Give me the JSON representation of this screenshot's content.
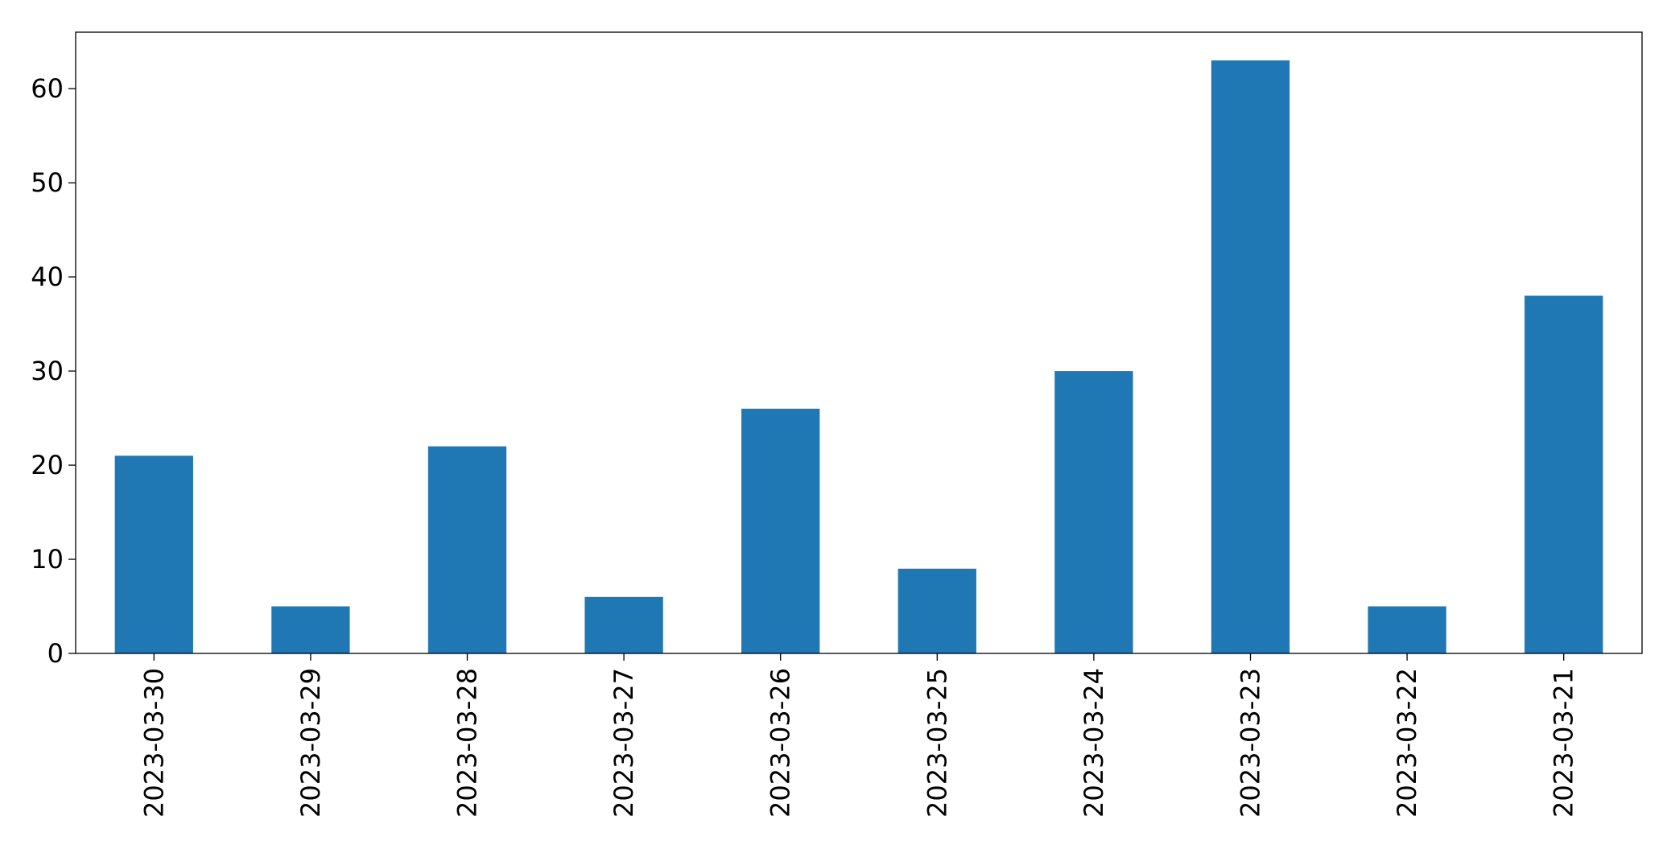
{
  "chart_data": {
    "type": "bar",
    "title": "",
    "xlabel": "",
    "ylabel": "",
    "categories": [
      "2023-03-30",
      "2023-03-29",
      "2023-03-28",
      "2023-03-27",
      "2023-03-26",
      "2023-03-25",
      "2023-03-24",
      "2023-03-23",
      "2023-03-22",
      "2023-03-21"
    ],
    "values": [
      21,
      5,
      22,
      6,
      26,
      9,
      30,
      63,
      5,
      38
    ],
    "ylim": [
      0,
      66
    ],
    "yticks": [
      0,
      10,
      20,
      30,
      40,
      50,
      60
    ],
    "ytick_labels": [
      "0",
      "10",
      "20",
      "30",
      "40",
      "50",
      "60"
    ],
    "bar_color": "#1f77b4",
    "grid": false,
    "legend": "none"
  }
}
